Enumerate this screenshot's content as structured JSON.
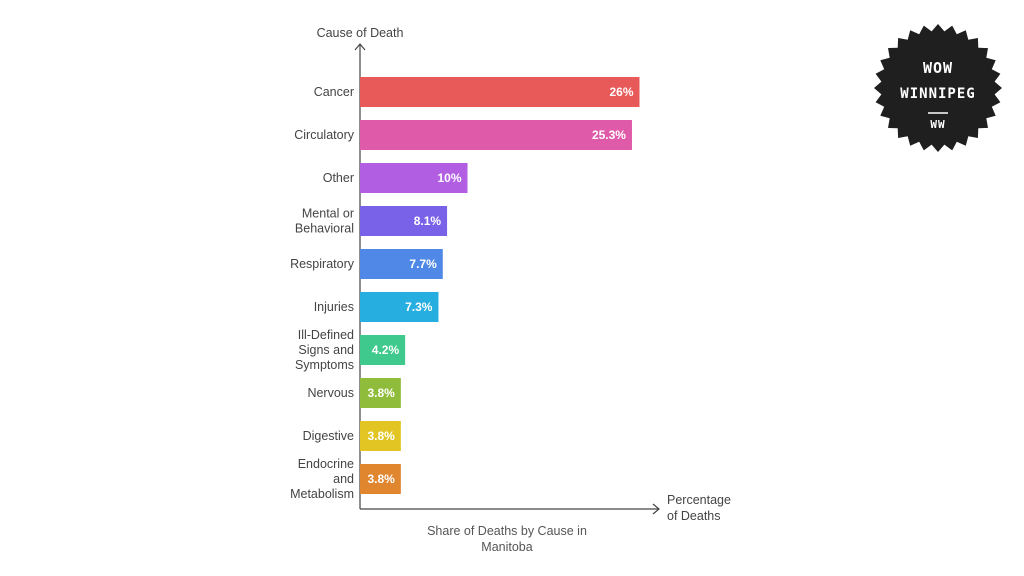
{
  "chart_data": {
    "type": "bar",
    "orientation": "horizontal",
    "y_axis_title": "Cause of Death",
    "x_axis_title": [
      "Percentage",
      "of Deaths"
    ],
    "caption": [
      "Share of Deaths by Cause in",
      "Manitoba"
    ],
    "categories": [
      [
        "Cancer"
      ],
      [
        "Circulatory"
      ],
      [
        "Other"
      ],
      [
        "Mental or",
        "Behavioral"
      ],
      [
        "Respiratory"
      ],
      [
        "Injuries"
      ],
      [
        "Ill-Defined",
        "Signs and",
        "Symptoms"
      ],
      [
        "Nervous"
      ],
      [
        "Digestive"
      ],
      [
        "Endocrine",
        "and",
        "Metabolism"
      ]
    ],
    "values": [
      26,
      25.3,
      10,
      8.1,
      7.7,
      7.3,
      4.2,
      3.8,
      3.8,
      3.8
    ],
    "value_labels": [
      "26%",
      "25.3%",
      "10%",
      "8.1%",
      "7.7%",
      "7.3%",
      "4.2%",
      "3.8%",
      "3.8%",
      "3.8%"
    ],
    "colors": [
      "#e85a5a",
      "#df5aa8",
      "#b25ee3",
      "#7a62e8",
      "#4f88e6",
      "#27aee0",
      "#3fc98c",
      "#8fbd3b",
      "#e2c523",
      "#e0862f"
    ],
    "grid": false,
    "legend": "none"
  },
  "badge": {
    "line1": "WOW",
    "line2": "WINNIPEG",
    "line3": "WW"
  }
}
